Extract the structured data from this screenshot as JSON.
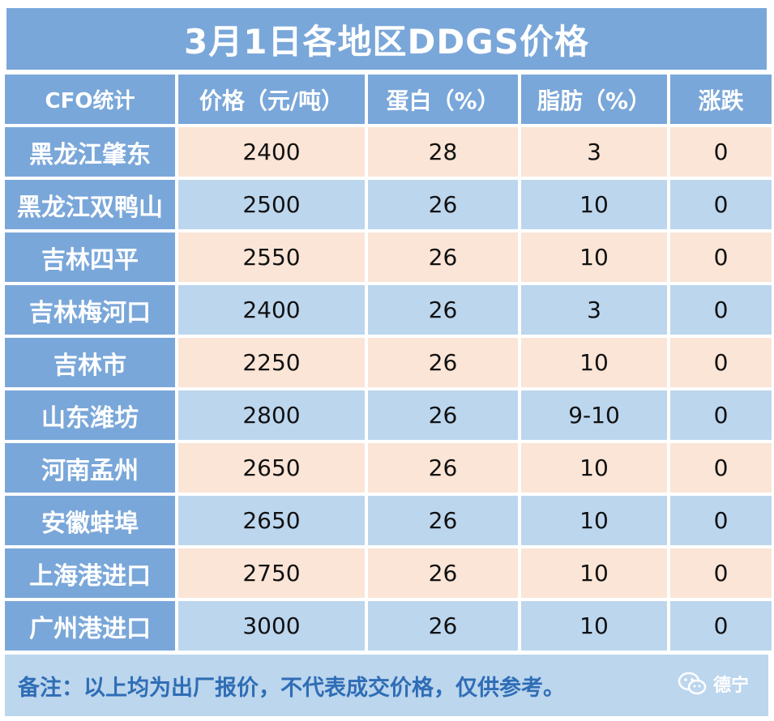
{
  "title": "3月1日各地区DDGS价格",
  "headers": [
    "CFO统计",
    "价格（元/吨）",
    "蛋白（%）",
    "脂肪（%）",
    "涨跌"
  ],
  "rows": [
    {
      "region": "黑龙江肇东",
      "price": "2400",
      "protein": "28",
      "fat": "3",
      "change": "0"
    },
    {
      "region": "黑龙江双鸭山",
      "price": "2500",
      "protein": "26",
      "fat": "10",
      "change": "0"
    },
    {
      "region": "吉林四平",
      "price": "2550",
      "protein": "26",
      "fat": "10",
      "change": "0"
    },
    {
      "region": "吉林梅河口",
      "price": "2400",
      "protein": "26",
      "fat": "3",
      "change": "0"
    },
    {
      "region": "吉林市",
      "price": "2250",
      "protein": "26",
      "fat": "10",
      "change": "0"
    },
    {
      "region": "山东潍坊",
      "price": "2800",
      "protein": "26",
      "fat": "9-10",
      "change": "0"
    },
    {
      "region": "河南孟州",
      "price": "2650",
      "protein": "26",
      "fat": "10",
      "change": "0"
    },
    {
      "region": "安徽蚌埠",
      "price": "2650",
      "protein": "26",
      "fat": "10",
      "change": "0"
    },
    {
      "region": "上海港进口",
      "price": "2750",
      "protein": "26",
      "fat": "10",
      "change": "0"
    },
    {
      "region": "广州港进口",
      "price": "3000",
      "protein": "26",
      "fat": "10",
      "change": "0"
    }
  ],
  "note": "备注：以上均为出厂报价，不代表成交价格，仅供参考。",
  "watermark": {
    "label": "德宁",
    "icon": "wechat-icon"
  },
  "colors": {
    "header": "#7aa7d9",
    "peach": "#fbe5d6",
    "blue": "#bcd6ee",
    "note_text": "#2f6db5"
  }
}
